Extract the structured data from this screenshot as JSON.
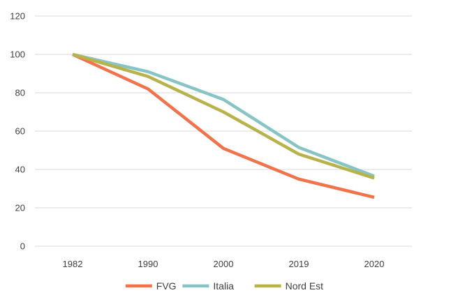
{
  "chart_data": {
    "type": "line",
    "title": "",
    "xlabel": "",
    "ylabel": "",
    "categories": [
      "1982",
      "1990",
      "2000",
      "2019",
      "2020"
    ],
    "ylim": [
      0,
      120
    ],
    "yticks": [
      "0",
      "20",
      "40",
      "60",
      "80",
      "100",
      "120"
    ],
    "grid": "horizontal",
    "legend_position": "bottom",
    "series": [
      {
        "name": "FVG",
        "color": "#f0734c",
        "values": [
          100,
          82,
          51,
          35,
          25.5
        ]
      },
      {
        "name": "Italia",
        "color": "#88c4c4",
        "values": [
          100,
          91,
          76.5,
          51.5,
          36.5
        ]
      },
      {
        "name": "Nord Est",
        "color": "#b8b24a",
        "values": [
          100,
          88.5,
          70,
          48,
          35.5
        ]
      }
    ]
  }
}
